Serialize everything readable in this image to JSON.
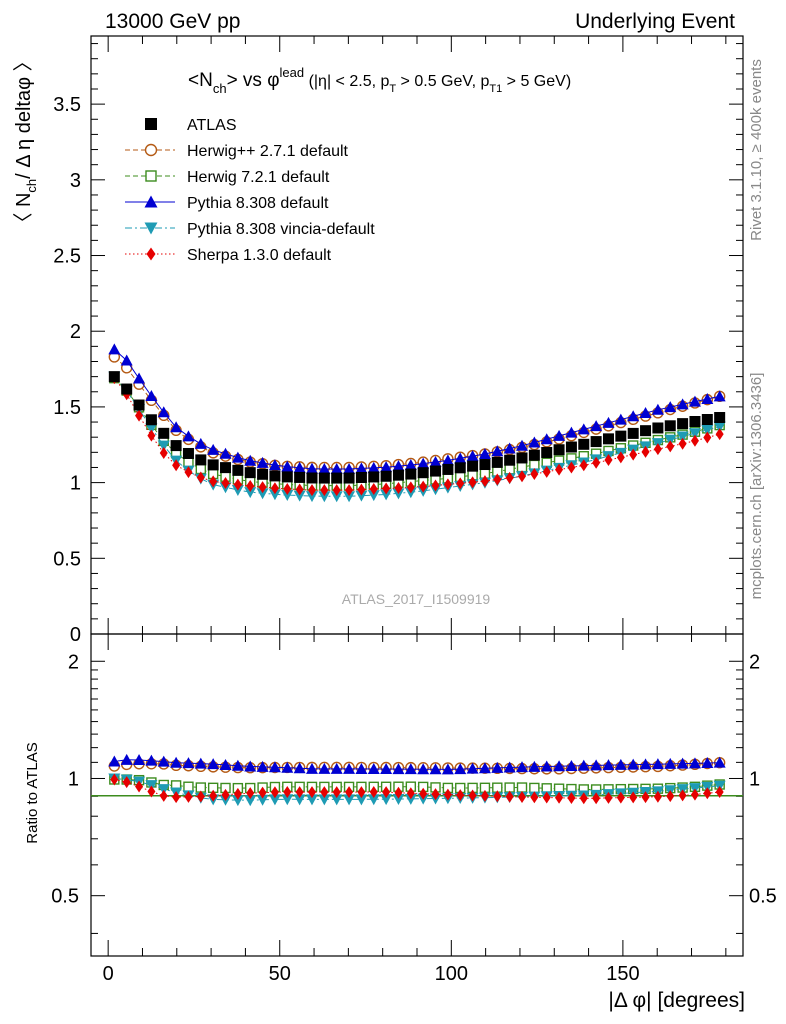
{
  "header": {
    "left": "13000 GeV pp",
    "right": "Underlying Event"
  },
  "side_labels": {
    "rivet": "Rivet 3.1.10, ≥ 400k events",
    "mcplots": "mcplots.cern.ch [arXiv:1306.3436]"
  },
  "watermark": "ATLAS_2017_I1509919",
  "plot_title": {
    "main": "<N",
    "main_sub": "ch",
    "vs": "> vs φ",
    "vs_sup": "lead",
    "cut1": " (|η| < 2.5, p",
    "cut1_sub": "T",
    "cut2": " > 0.5 GeV, p",
    "cut2_sub": "T1",
    "cut3": " > 5 GeV)"
  },
  "axes": {
    "ylabel_main_a": "〈 N",
    "ylabel_main_sub": "ch",
    "ylabel_main_b": "/ Δ η deltaφ 〉",
    "ylabel_ratio": "Ratio to ATLAS",
    "xlabel": "|Δ φ| [degrees]",
    "main_yticks": [
      "0",
      "0.5",
      "1",
      "1.5",
      "2",
      "2.5",
      "3",
      "3.5"
    ],
    "ratio_yticks_left": [
      "0.5",
      "1",
      "2"
    ],
    "ratio_yticks_right": [
      "0.5",
      "1",
      "2"
    ],
    "xticks": [
      "0",
      "50",
      "100",
      "150"
    ]
  },
  "legend": [
    {
      "label": "ATLAS",
      "color": "#000000",
      "marker": "square-filled",
      "line": "none"
    },
    {
      "label": "Herwig++ 2.7.1 default",
      "color": "#b45a14",
      "marker": "circle-open",
      "line": "dashed"
    },
    {
      "label": "Herwig 7.2.1 default",
      "color": "#3c8c1e",
      "marker": "square-open",
      "line": "dashed"
    },
    {
      "label": "Pythia 8.308 default",
      "color": "#0000d2",
      "marker": "triangle-up-filled",
      "line": "solid"
    },
    {
      "label": "Pythia 8.308 vincia-default",
      "color": "#1e9bb4",
      "marker": "triangle-down-filled",
      "line": "dashdot"
    },
    {
      "label": "Sherpa 1.3.0 default",
      "color": "#e60000",
      "marker": "diamond-filled",
      "line": "dotted"
    }
  ],
  "chart_data": {
    "type": "scatter",
    "title": "<Nch> vs phi_lead (|eta| < 2.5, pT > 0.5 GeV, pT1 > 5 GeV)",
    "xlabel": "|Δ φ| [degrees]",
    "ylabel": "〈 N_ch / Δ η deltaφ 〉",
    "xlim": [
      -5,
      185
    ],
    "ylim": [
      0,
      3.95
    ],
    "ratio_ylim": [
      0.35,
      2.35
    ],
    "ratio_ylabel": "Ratio to ATLAS",
    "ratio_ylog": true,
    "x_range": [
      1.8,
      178.2
    ],
    "n_points": 50,
    "series": [
      {
        "name": "ATLAS",
        "color": "#000000",
        "knots_x": [
          1.8,
          5,
          8,
          12,
          16,
          20,
          25,
          30,
          40,
          50,
          60,
          70,
          80,
          90,
          100,
          110,
          120,
          130,
          140,
          150,
          160,
          170,
          178.2
        ],
        "knots_y": [
          1.7,
          1.63,
          1.54,
          1.43,
          1.33,
          1.24,
          1.17,
          1.12,
          1.07,
          1.04,
          1.03,
          1.03,
          1.04,
          1.06,
          1.09,
          1.12,
          1.16,
          1.21,
          1.26,
          1.31,
          1.36,
          1.4,
          1.43
        ]
      },
      {
        "name": "Herwig++ 2.7.1 default",
        "color": "#b45a14",
        "knots_x": [
          1.8,
          5,
          8,
          12,
          16,
          20,
          25,
          30,
          40,
          50,
          60,
          70,
          80,
          90,
          100,
          110,
          120,
          130,
          140,
          150,
          160,
          170,
          178.2
        ],
        "knots_y": [
          1.83,
          1.77,
          1.68,
          1.56,
          1.45,
          1.34,
          1.26,
          1.2,
          1.14,
          1.11,
          1.1,
          1.1,
          1.11,
          1.13,
          1.16,
          1.19,
          1.23,
          1.28,
          1.34,
          1.4,
          1.46,
          1.52,
          1.57
        ]
      },
      {
        "name": "Herwig 7.2.1 default",
        "color": "#3c8c1e",
        "knots_x": [
          1.8,
          5,
          8,
          12,
          16,
          20,
          25,
          30,
          40,
          50,
          60,
          70,
          80,
          90,
          100,
          110,
          120,
          130,
          140,
          150,
          160,
          170,
          178.2
        ],
        "knots_y": [
          1.69,
          1.62,
          1.53,
          1.4,
          1.28,
          1.19,
          1.11,
          1.06,
          1.01,
          0.99,
          0.98,
          0.98,
          0.99,
          1.01,
          1.03,
          1.06,
          1.1,
          1.14,
          1.18,
          1.23,
          1.28,
          1.33,
          1.38
        ]
      },
      {
        "name": "Pythia 8.308 default",
        "color": "#0000d2",
        "knots_x": [
          1.8,
          5,
          8,
          12,
          16,
          20,
          25,
          30,
          40,
          50,
          60,
          70,
          80,
          90,
          100,
          110,
          120,
          130,
          140,
          150,
          160,
          170,
          178.2
        ],
        "knots_y": [
          1.88,
          1.82,
          1.72,
          1.59,
          1.47,
          1.36,
          1.28,
          1.22,
          1.15,
          1.11,
          1.09,
          1.09,
          1.1,
          1.12,
          1.15,
          1.19,
          1.24,
          1.3,
          1.36,
          1.42,
          1.48,
          1.53,
          1.57
        ]
      },
      {
        "name": "Pythia 8.308 vincia-default",
        "color": "#1e9bb4",
        "knots_x": [
          1.8,
          5,
          8,
          12,
          16,
          20,
          25,
          30,
          40,
          50,
          60,
          70,
          80,
          90,
          100,
          110,
          120,
          130,
          140,
          150,
          160,
          170,
          178.2
        ],
        "knots_y": [
          1.7,
          1.62,
          1.52,
          1.38,
          1.25,
          1.14,
          1.05,
          0.99,
          0.94,
          0.92,
          0.91,
          0.91,
          0.92,
          0.94,
          0.97,
          1.0,
          1.04,
          1.09,
          1.14,
          1.2,
          1.26,
          1.32,
          1.37
        ]
      },
      {
        "name": "Sherpa 1.3.0 default",
        "color": "#e60000",
        "knots_x": [
          1.8,
          5,
          8,
          12,
          16,
          20,
          25,
          30,
          40,
          50,
          60,
          70,
          80,
          90,
          100,
          110,
          120,
          130,
          140,
          150,
          160,
          170,
          178.2
        ],
        "knots_y": [
          1.69,
          1.6,
          1.48,
          1.33,
          1.2,
          1.11,
          1.05,
          1.01,
          0.98,
          0.96,
          0.95,
          0.95,
          0.96,
          0.97,
          0.99,
          1.01,
          1.04,
          1.08,
          1.12,
          1.17,
          1.22,
          1.27,
          1.32
        ]
      }
    ]
  }
}
